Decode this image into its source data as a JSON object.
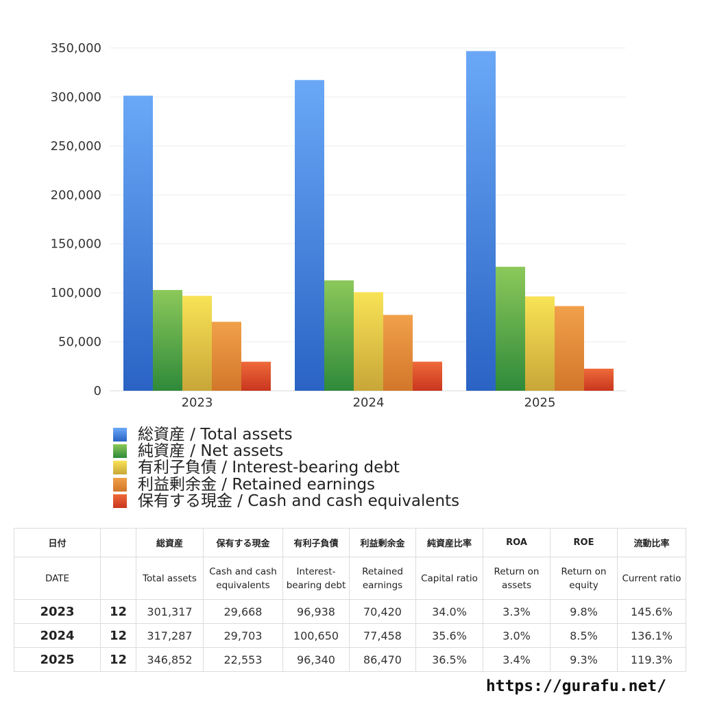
{
  "chart_data": {
    "type": "bar",
    "categories": [
      "2023",
      "2024",
      "2025"
    ],
    "series": [
      {
        "name": "総資産 / Total assets",
        "values": [
          301317,
          317287,
          346852
        ],
        "color_top": "#6aa8f7",
        "color_bottom": "#2a63c4"
      },
      {
        "name": "純資産 / Net assets",
        "values": [
          102900,
          112700,
          126600
        ],
        "color_top": "#8cc85a",
        "color_bottom": "#2f8a3a"
      },
      {
        "name": "有利子負債 / Interest-bearing debt",
        "values": [
          96938,
          100650,
          96340
        ],
        "color_top": "#f8e356",
        "color_bottom": "#c8a638"
      },
      {
        "name": "利益剰余金 / Retained earnings",
        "values": [
          70420,
          77458,
          86470
        ],
        "color_top": "#f1a04a",
        "color_bottom": "#d2772a"
      },
      {
        "name": "保有する現金 /  Cash and cash equivalents",
        "values": [
          29668,
          29703,
          22553
        ],
        "color_top": "#ee6a3a",
        "color_bottom": "#c9361f"
      }
    ],
    "ylim": [
      0,
      350000
    ],
    "yticks": [
      0,
      50000,
      100000,
      150000,
      200000,
      250000,
      300000,
      350000
    ],
    "ytick_labels": [
      "0",
      "50,000",
      "100,000",
      "150,000",
      "200,000",
      "250,000",
      "300,000",
      "350,000"
    ],
    "grid": true,
    "legend_position": "bottom"
  },
  "table": {
    "head_jp": [
      "日付",
      "",
      "総資産",
      "保有する現金",
      "有利子負債",
      "利益剰余金",
      "純資産比率",
      "ROA",
      "ROE",
      "流動比率"
    ],
    "head_en": [
      "DATE",
      "",
      "Total assets",
      "Cash and cash equivalents",
      "Interest-bearing debt",
      "Retained earnings",
      "Capital ratio",
      "Return on assets",
      "Return on equity",
      "Current ratio"
    ],
    "rows": [
      [
        "2023",
        "12",
        "301,317",
        "29,668",
        "96,938",
        "70,420",
        "34.0%",
        "3.3%",
        "9.8%",
        "145.6%"
      ],
      [
        "2024",
        "12",
        "317,287",
        "29,703",
        "100,650",
        "77,458",
        "35.6%",
        "3.0%",
        "8.5%",
        "136.1%"
      ],
      [
        "2025",
        "12",
        "346,852",
        "22,553",
        "96,340",
        "86,470",
        "36.5%",
        "3.4%",
        "9.3%",
        "119.3%"
      ]
    ]
  },
  "footer": {
    "url": "https://gurafu.net/"
  }
}
